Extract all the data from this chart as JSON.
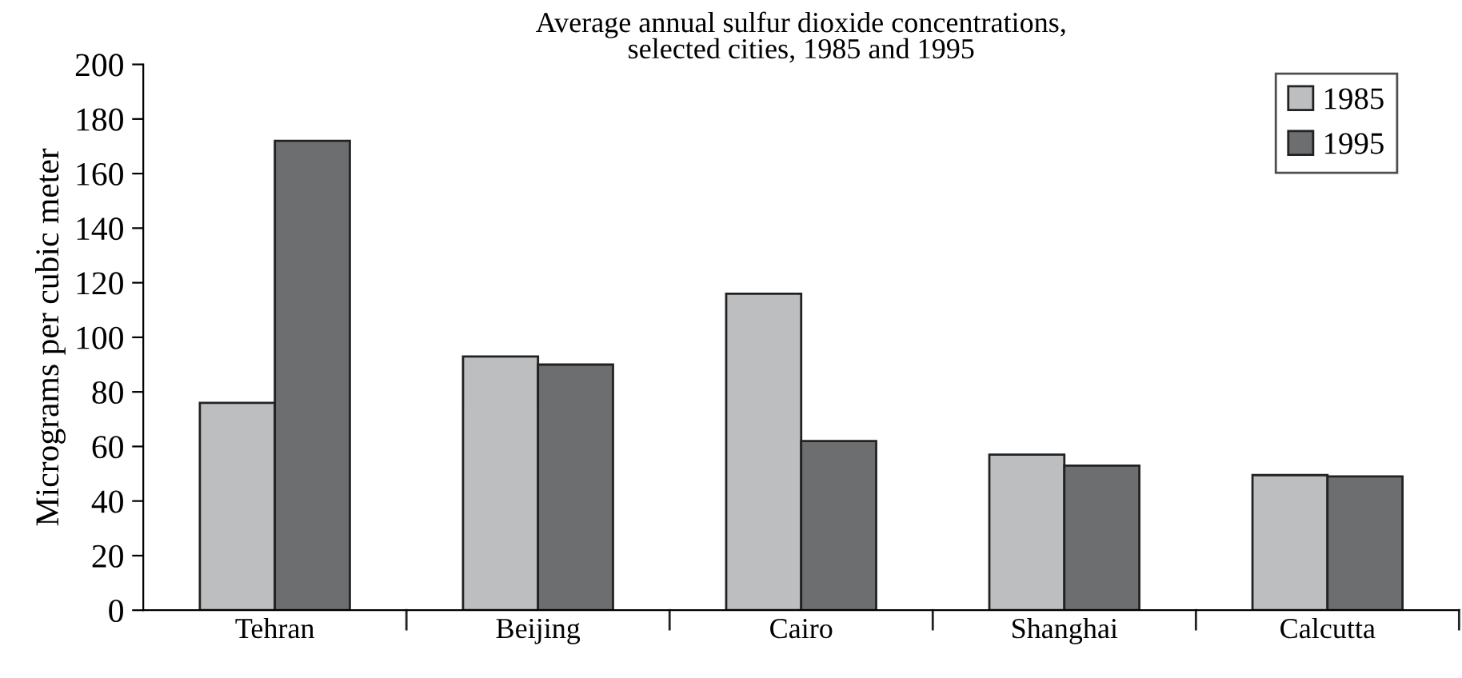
{
  "chart_data": {
    "type": "bar",
    "title": "Average annual sulfur dioxide concentrations,\nselected cities, 1985 and 1995",
    "ylabel": "Micrograms per cubic meter",
    "categories": [
      "Tehran",
      "Beijing",
      "Cairo",
      "Shanghai",
      "Calcutta"
    ],
    "series": [
      {
        "name": "1985",
        "color": "#bdbec0",
        "values": [
          76,
          93,
          116,
          57,
          49.5
        ]
      },
      {
        "name": "1995",
        "color": "#6d6e70",
        "values": [
          172,
          90,
          62,
          53,
          49
        ]
      }
    ],
    "ylim": [
      0,
      200
    ],
    "yticks": [
      0,
      20,
      40,
      60,
      80,
      100,
      120,
      140,
      160,
      180,
      200
    ],
    "grid": false,
    "legend": "top right"
  }
}
